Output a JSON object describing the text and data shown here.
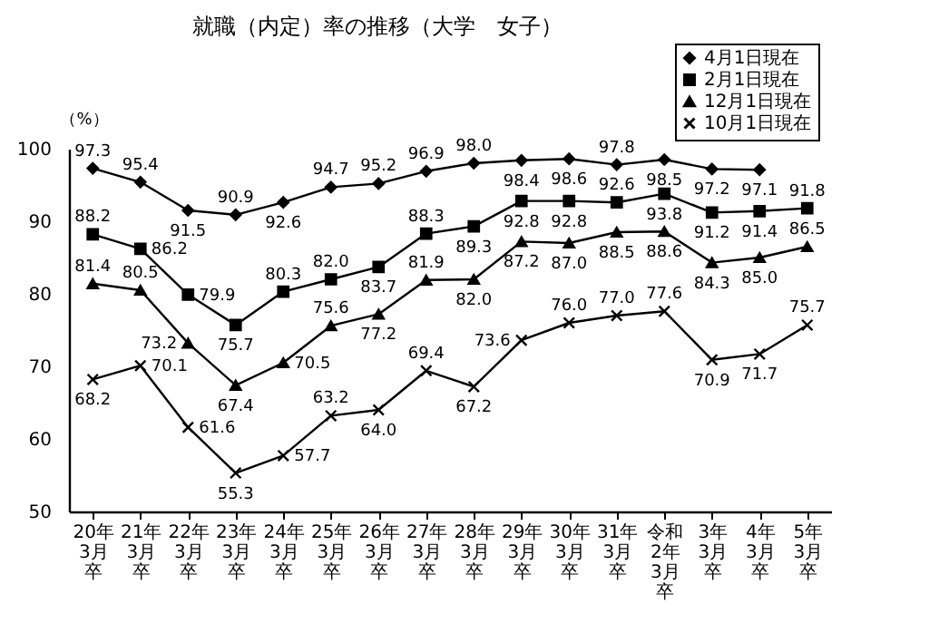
{
  "chart_data": {
    "type": "line",
    "title": "就職（内定）率の推移（大学　女子）",
    "ylabel": "（%）",
    "categories": [
      "20年3月卒",
      "21年3月卒",
      "22年3月卒",
      "23年3月卒",
      "24年3月卒",
      "25年3月卒",
      "26年3月卒",
      "27年3月卒",
      "28年3月卒",
      "29年3月卒",
      "30年3月卒",
      "31年3月卒",
      "令和2年3月卒",
      "3年3月卒",
      "4年3月卒",
      "5年3月卒"
    ],
    "series": [
      {
        "name": "4月1日現在",
        "color": "#000000",
        "marker": "diamond",
        "values": [
          97.3,
          95.4,
          91.5,
          90.9,
          92.6,
          94.7,
          95.2,
          96.9,
          98.0,
          98.4,
          98.6,
          97.8,
          98.5,
          97.2,
          97.1,
          null
        ],
        "value_labels": [
          "97.3",
          "95.4",
          "91.5",
          "90.9",
          "92.6",
          "94.7",
          "95.2",
          "96.9",
          "98.0",
          "98.4",
          "98.6",
          "97.8",
          "98.5",
          "97.2",
          "97.1",
          null
        ]
      },
      {
        "name": "2月1日現在",
        "color": "#000000",
        "marker": "square",
        "values": [
          88.2,
          86.2,
          79.9,
          75.7,
          80.3,
          82.0,
          83.7,
          88.3,
          89.3,
          92.8,
          92.8,
          92.6,
          93.8,
          91.2,
          91.4,
          91.8
        ],
        "value_labels": [
          "88.2",
          "86.2",
          "79.9",
          "75.7",
          "80.3",
          "82.0",
          "83.7",
          "88.3",
          "89.3",
          "92.8",
          "92.8",
          "92.6",
          "93.8",
          "91.2",
          "91.4",
          "91.8"
        ]
      },
      {
        "name": "12月1日現在",
        "color": "#000000",
        "marker": "triangle",
        "values": [
          81.4,
          80.5,
          73.2,
          67.4,
          70.5,
          75.6,
          77.2,
          81.9,
          82.0,
          87.2,
          87.0,
          88.5,
          88.6,
          84.3,
          85.0,
          86.5
        ],
        "value_labels": [
          "81.4",
          "80.5",
          "73.2",
          "67.4",
          "70.5",
          "75.6",
          "77.2",
          "81.9",
          "82.0",
          "87.2",
          "87.0",
          "88.5",
          "88.6",
          "84.3",
          "85.0",
          "86.5"
        ]
      },
      {
        "name": "10月1日現在",
        "color": "#000000",
        "marker": "cross",
        "values": [
          68.2,
          70.1,
          61.6,
          55.3,
          57.7,
          63.2,
          64.0,
          69.4,
          67.2,
          73.6,
          76.0,
          77.0,
          77.6,
          70.9,
          71.7,
          75.7
        ],
        "value_labels": [
          "68.2",
          "70.1",
          "61.6",
          "55.3",
          "57.7",
          "63.2",
          "64.0",
          "69.4",
          "67.2",
          "73.6",
          "76.0",
          "77.0",
          "77.6",
          "70.9",
          "71.7",
          "75.7"
        ]
      }
    ],
    "ylim": [
      50,
      100
    ],
    "yticks": [
      50,
      60,
      70,
      80,
      90,
      100
    ],
    "grid": false,
    "legend": "top right",
    "line_style": "solid"
  }
}
